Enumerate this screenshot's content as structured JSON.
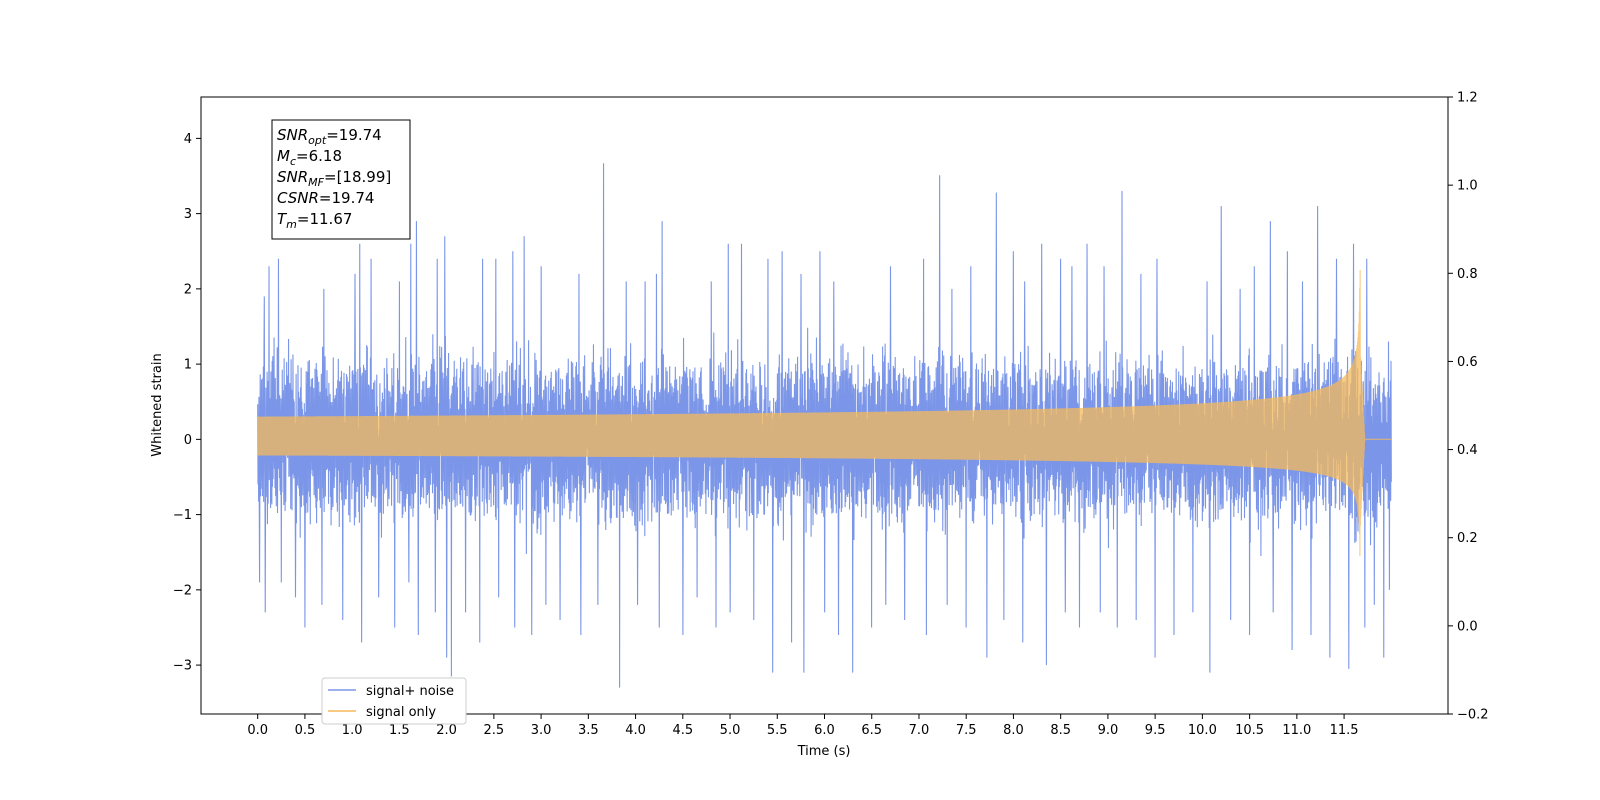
{
  "chart_data": {
    "type": "line",
    "title": "",
    "xlabel": "Time (s)",
    "ylabel": "Whitened strain",
    "xlim": [
      -0.6,
      12.6
    ],
    "ylim": [
      -3.65,
      4.55
    ],
    "y2lim": [
      -0.2,
      1.2
    ],
    "x_ticks": [
      "0.0",
      "0.5",
      "1.0",
      "1.5",
      "2.0",
      "2.5",
      "3.0",
      "3.5",
      "4.0",
      "4.5",
      "5.0",
      "5.5",
      "6.0",
      "6.5",
      "7.0",
      "7.5",
      "8.0",
      "8.5",
      "9.0",
      "9.5",
      "10.0",
      "10.5",
      "11.0",
      "11.5"
    ],
    "y_ticks": [
      "4",
      "3",
      "2",
      "1",
      "0",
      "−1",
      "−2",
      "−3"
    ],
    "y2_ticks": [
      "1.2",
      "1.0",
      "0.8",
      "0.6",
      "0.4",
      "0.2",
      "0.0",
      "−0.2"
    ],
    "grid": false,
    "legend_placement": "lower-left",
    "series": [
      {
        "name": "signal+ noise",
        "color": "#7b96e8",
        "x_range": [
          0.0,
          12.0
        ],
        "envelope_abs": 1.2,
        "peaks_pos": [
          [
            0.02,
            1.9
          ],
          [
            0.07,
            1.9
          ],
          [
            0.12,
            2.3
          ],
          [
            0.22,
            2.4
          ],
          [
            0.4,
            2.2
          ],
          [
            0.5,
            2.3
          ],
          [
            0.7,
            2.0
          ],
          [
            0.9,
            2.3
          ],
          [
            1.03,
            2.2
          ],
          [
            1.08,
            2.6
          ],
          [
            1.2,
            2.4
          ],
          [
            1.5,
            2.1
          ],
          [
            1.62,
            2.6
          ],
          [
            1.68,
            2.9
          ],
          [
            1.9,
            2.4
          ],
          [
            1.98,
            2.7
          ],
          [
            2.05,
            2.7
          ],
          [
            2.2,
            2.2
          ],
          [
            2.38,
            2.4
          ],
          [
            2.52,
            2.4
          ],
          [
            2.7,
            2.5
          ],
          [
            2.82,
            2.7
          ],
          [
            3.0,
            2.3
          ],
          [
            3.2,
            2.1
          ],
          [
            3.4,
            2.2
          ],
          [
            3.66,
            3.67
          ],
          [
            3.9,
            2.1
          ],
          [
            4.1,
            2.1
          ],
          [
            4.22,
            2.2
          ],
          [
            4.28,
            2.9
          ],
          [
            4.5,
            2.3
          ],
          [
            4.8,
            2.1
          ],
          [
            4.98,
            2.6
          ],
          [
            5.12,
            2.6
          ],
          [
            5.4,
            2.4
          ],
          [
            5.55,
            2.5
          ],
          [
            5.75,
            2.2
          ],
          [
            5.95,
            2.5
          ],
          [
            6.1,
            2.1
          ],
          [
            6.3,
            2.6
          ],
          [
            6.5,
            2.7
          ],
          [
            6.7,
            2.3
          ],
          [
            6.85,
            2.2
          ],
          [
            7.05,
            2.4
          ],
          [
            7.22,
            3.51
          ],
          [
            7.35,
            2.0
          ],
          [
            7.55,
            2.3
          ],
          [
            7.82,
            3.28
          ],
          [
            8.0,
            2.5
          ],
          [
            8.12,
            2.1
          ],
          [
            8.3,
            2.6
          ],
          [
            8.5,
            2.4
          ],
          [
            8.62,
            2.3
          ],
          [
            8.78,
            2.6
          ],
          [
            8.96,
            2.3
          ],
          [
            9.15,
            3.3
          ],
          [
            9.35,
            2.2
          ],
          [
            9.52,
            2.4
          ],
          [
            9.7,
            2.2
          ],
          [
            9.9,
            2.6
          ],
          [
            10.05,
            2.1
          ],
          [
            10.2,
            3.1
          ],
          [
            10.4,
            2.0
          ],
          [
            10.55,
            2.3
          ],
          [
            10.72,
            2.9
          ],
          [
            10.9,
            2.5
          ],
          [
            11.06,
            2.1
          ],
          [
            11.22,
            3.1
          ],
          [
            11.42,
            2.4
          ],
          [
            11.6,
            2.6
          ],
          [
            11.74,
            2.4
          ],
          [
            11.82,
            2.1
          ],
          [
            11.92,
            2.0
          ],
          [
            11.98,
            1.7
          ]
        ],
        "peaks_neg": [
          [
            0.02,
            -1.9
          ],
          [
            0.08,
            -2.3
          ],
          [
            0.25,
            -1.9
          ],
          [
            0.4,
            -2.1
          ],
          [
            0.5,
            -2.5
          ],
          [
            0.68,
            -2.2
          ],
          [
            0.9,
            -2.4
          ],
          [
            1.1,
            -2.7
          ],
          [
            1.28,
            -2.1
          ],
          [
            1.45,
            -2.5
          ],
          [
            1.6,
            -1.9
          ],
          [
            1.7,
            -2.6
          ],
          [
            1.88,
            -2.3
          ],
          [
            2.0,
            -2.9
          ],
          [
            2.05,
            -3.15
          ],
          [
            2.2,
            -2.3
          ],
          [
            2.35,
            -2.7
          ],
          [
            2.55,
            -2.1
          ],
          [
            2.72,
            -2.5
          ],
          [
            2.9,
            -2.6
          ],
          [
            3.05,
            -2.2
          ],
          [
            3.2,
            -2.4
          ],
          [
            3.42,
            -2.6
          ],
          [
            3.6,
            -2.2
          ],
          [
            3.83,
            -3.3
          ],
          [
            4.02,
            -2.2
          ],
          [
            4.25,
            -2.5
          ],
          [
            4.5,
            -2.6
          ],
          [
            4.65,
            -2.1
          ],
          [
            4.85,
            -2.5
          ],
          [
            5.0,
            -2.3
          ],
          [
            5.25,
            -2.4
          ],
          [
            5.45,
            -3.1
          ],
          [
            5.65,
            -2.7
          ],
          [
            5.78,
            -3.1
          ],
          [
            6.0,
            -2.3
          ],
          [
            6.15,
            -2.6
          ],
          [
            6.3,
            -3.1
          ],
          [
            6.5,
            -2.5
          ],
          [
            6.65,
            -2.2
          ],
          [
            6.85,
            -2.4
          ],
          [
            7.08,
            -2.6
          ],
          [
            7.3,
            -2.2
          ],
          [
            7.5,
            -2.5
          ],
          [
            7.72,
            -2.9
          ],
          [
            7.9,
            -2.4
          ],
          [
            8.1,
            -2.7
          ],
          [
            8.35,
            -3.0
          ],
          [
            8.55,
            -2.3
          ],
          [
            8.7,
            -2.5
          ],
          [
            8.92,
            -2.3
          ],
          [
            9.1,
            -2.5
          ],
          [
            9.3,
            -2.4
          ],
          [
            9.5,
            -2.9
          ],
          [
            9.7,
            -2.6
          ],
          [
            9.9,
            -2.3
          ],
          [
            10.08,
            -3.1
          ],
          [
            10.3,
            -2.4
          ],
          [
            10.5,
            -2.6
          ],
          [
            10.75,
            -2.3
          ],
          [
            10.95,
            -2.8
          ],
          [
            11.15,
            -2.6
          ],
          [
            11.35,
            -2.9
          ],
          [
            11.55,
            -3.05
          ],
          [
            11.72,
            -2.5
          ],
          [
            11.82,
            -2.2
          ],
          [
            11.92,
            -2.9
          ],
          [
            11.98,
            -2.0
          ]
        ]
      },
      {
        "name": "signal only",
        "color": "#f5b95a",
        "x_range": [
          0.0,
          11.7
        ],
        "chirp": {
          "t_merger": 11.67,
          "amplitude_start": 0.02,
          "amplitude_peak_pos": 2.25,
          "amplitude_peak_neg": -1.55,
          "ringdown_end": 11.72,
          "flat_until": 12.0
        }
      }
    ],
    "annotations": [
      {
        "key": "SNR",
        "sub": "opt",
        "value": "=19.74"
      },
      {
        "key": "M",
        "sub": "c",
        "value": "=6.18"
      },
      {
        "key": "SNR",
        "sub": "MF",
        "value": "=[18.99]"
      },
      {
        "key": "CSNR",
        "sub": "",
        "value": "=19.74"
      },
      {
        "key": "T",
        "sub": "m",
        "value": "=11.67"
      }
    ]
  }
}
